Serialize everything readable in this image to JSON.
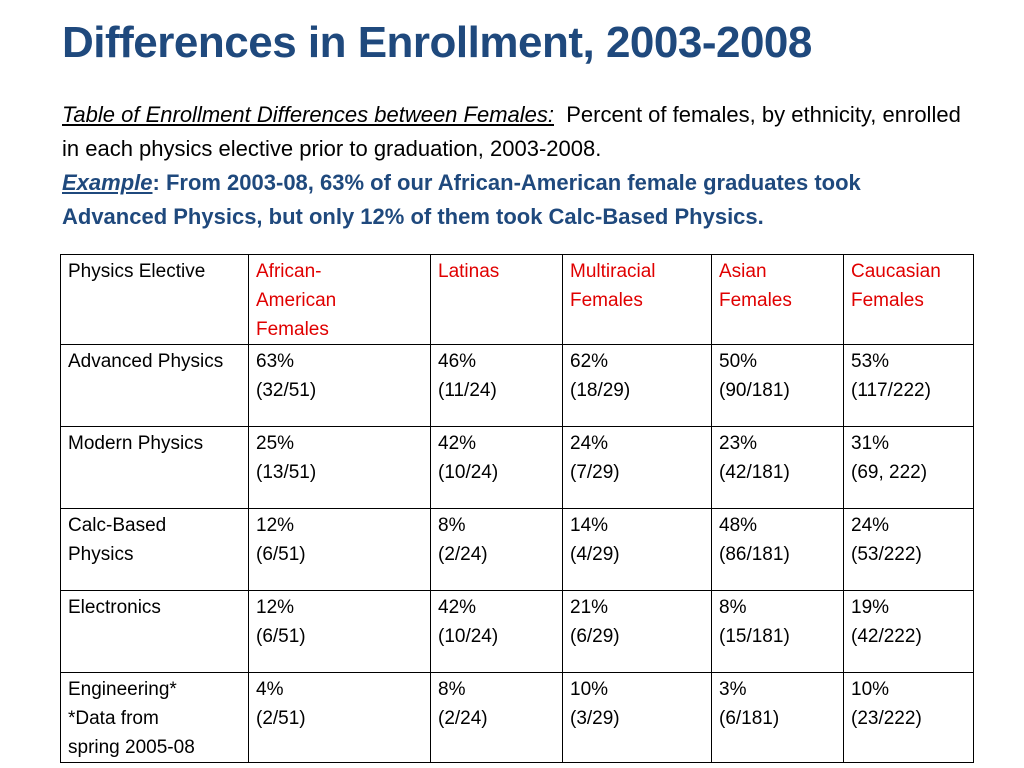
{
  "title": "Differences in Enrollment, 2003-2008",
  "intro": {
    "caption": "Table of Enrollment Differences between Females:",
    "description": "Percent of females, by ethnicity, enrolled in each physics elective prior to graduation, 2003-2008.",
    "example_label": "Example",
    "example_text": ": From 2003-08, 63% of our African-American female graduates took Advanced Physics, but only 12% of them took Calc-Based Physics."
  },
  "table": {
    "headers": [
      "Physics Elective",
      "African-\nAmerican\nFemales",
      "Latinas",
      "Multiracial\nFemales",
      "Asian\nFemales",
      "Caucasian\nFemales"
    ],
    "rows": [
      {
        "elective": "Advanced Physics",
        "cells": [
          {
            "pct": "63%",
            "frac": "(32/51)"
          },
          {
            "pct": "46%",
            "frac": "(11/24)"
          },
          {
            "pct": "62%",
            "frac": "(18/29)"
          },
          {
            "pct": "50%",
            "frac": "(90/181)"
          },
          {
            "pct": "53%",
            "frac": "(117/222)"
          }
        ]
      },
      {
        "elective": "Modern Physics",
        "cells": [
          {
            "pct": "25%",
            "frac": "(13/51)"
          },
          {
            "pct": "42%",
            "frac": "(10/24)"
          },
          {
            "pct": "24%",
            "frac": "(7/29)"
          },
          {
            "pct": "23%",
            "frac": "(42/181)"
          },
          {
            "pct": "31%",
            "frac": "(69, 222)"
          }
        ]
      },
      {
        "elective": "Calc-Based\nPhysics",
        "cells": [
          {
            "pct": "12%",
            "frac": "(6/51)"
          },
          {
            "pct": "8%",
            "frac": "(2/24)"
          },
          {
            "pct": "14%",
            "frac": "(4/29)"
          },
          {
            "pct": "48%",
            "frac": "(86/181)"
          },
          {
            "pct": "24%",
            "frac": "(53/222)"
          }
        ]
      },
      {
        "elective": "Electronics",
        "cells": [
          {
            "pct": "12%",
            "frac": "(6/51)"
          },
          {
            "pct": "42%",
            "frac": "(10/24)"
          },
          {
            "pct": "21%",
            "frac": "(6/29)"
          },
          {
            "pct": "8%",
            "frac": "(15/181)"
          },
          {
            "pct": "19%",
            "frac": "(42/222)"
          }
        ]
      },
      {
        "elective": "Engineering*\n*Data from\nspring 2005-08",
        "cells": [
          {
            "pct": "4%",
            "frac": "(2/51)"
          },
          {
            "pct": "8%",
            "frac": "(2/24)"
          },
          {
            "pct": "10%",
            "frac": "(3/29)"
          },
          {
            "pct": "3%",
            "frac": "(6/181)"
          },
          {
            "pct": "10%",
            "frac": "(23/222)"
          }
        ]
      }
    ]
  },
  "colors": {
    "title": "#1f497d",
    "example": "#1f497d",
    "header_ethnicity": "#e00000",
    "text": "#000000"
  }
}
